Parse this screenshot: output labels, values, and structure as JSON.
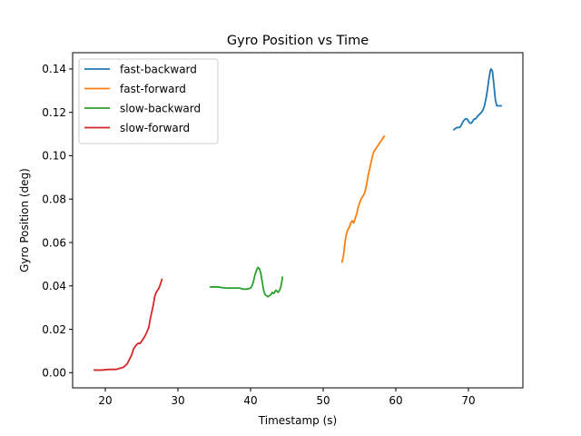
{
  "chart_data": {
    "type": "line",
    "title": "Gyro Position vs Time",
    "xlabel": "Timestamp (s)",
    "ylabel": "Gyro Position (deg)",
    "xlim": [
      15.5,
      77.5
    ],
    "ylim": [
      -0.007,
      0.1475
    ],
    "xticks": [
      20,
      30,
      40,
      50,
      60,
      70
    ],
    "yticks": [
      0.0,
      0.02,
      0.04,
      0.06,
      0.08,
      0.1,
      0.12,
      0.14
    ],
    "ytick_labels": [
      "0.00",
      "0.02",
      "0.04",
      "0.06",
      "0.08",
      "0.10",
      "0.12",
      "0.14"
    ],
    "grid": false,
    "legend_position": "top-left",
    "series": [
      {
        "name": "fast-backward",
        "color": "#1f77b4",
        "x": [
          68.0,
          68.4,
          68.8,
          69.0,
          69.3,
          69.6,
          69.8,
          70.0,
          70.2,
          70.4,
          70.6,
          70.8,
          71.0,
          71.2,
          71.5,
          71.8,
          72.0,
          72.2,
          72.4,
          72.6,
          72.8,
          73.0,
          73.1,
          73.3,
          73.5,
          73.7,
          73.9,
          74.1,
          74.3,
          74.5
        ],
        "y": [
          0.112,
          0.113,
          0.113,
          0.114,
          0.116,
          0.117,
          0.117,
          0.116,
          0.115,
          0.115,
          0.116,
          0.117,
          0.117,
          0.118,
          0.119,
          0.12,
          0.121,
          0.123,
          0.126,
          0.13,
          0.135,
          0.139,
          0.14,
          0.139,
          0.133,
          0.126,
          0.123,
          0.123,
          0.123,
          0.123
        ]
      },
      {
        "name": "fast-forward",
        "color": "#ff7f0e",
        "x": [
          52.6,
          52.8,
          53.0,
          53.2,
          53.4,
          53.6,
          53.8,
          54.0,
          54.2,
          54.4,
          54.6,
          54.8,
          55.0,
          55.2,
          55.4,
          55.6,
          55.8,
          56.0,
          56.2,
          56.4,
          56.6,
          56.8,
          57.0,
          57.2,
          57.4,
          57.6,
          57.8,
          58.0,
          58.2,
          58.4
        ],
        "y": [
          0.051,
          0.054,
          0.06,
          0.064,
          0.066,
          0.067,
          0.069,
          0.07,
          0.069,
          0.071,
          0.073,
          0.076,
          0.078,
          0.08,
          0.081,
          0.082,
          0.084,
          0.087,
          0.091,
          0.094,
          0.097,
          0.1,
          0.102,
          0.103,
          0.104,
          0.105,
          0.106,
          0.107,
          0.108,
          0.109
        ]
      },
      {
        "name": "slow-backward",
        "color": "#2ca02c",
        "x": [
          34.5,
          35.5,
          36.5,
          37.5,
          38.5,
          39.0,
          39.5,
          40.0,
          40.2,
          40.4,
          40.6,
          40.8,
          41.0,
          41.2,
          41.4,
          41.6,
          41.8,
          42.0,
          42.2,
          42.4,
          42.6,
          42.8,
          43.0,
          43.2,
          43.5,
          43.8,
          44.0,
          44.2,
          44.4
        ],
        "y": [
          0.0395,
          0.0395,
          0.039,
          0.039,
          0.039,
          0.0385,
          0.0385,
          0.039,
          0.04,
          0.042,
          0.045,
          0.047,
          0.0485,
          0.048,
          0.046,
          0.042,
          0.038,
          0.036,
          0.0355,
          0.035,
          0.0355,
          0.036,
          0.037,
          0.0365,
          0.038,
          0.037,
          0.038,
          0.04,
          0.044
        ]
      },
      {
        "name": "slow-forward",
        "color": "#d62728",
        "x": [
          18.5,
          19.5,
          20.5,
          21.5,
          22.0,
          22.5,
          23.0,
          23.3,
          23.6,
          23.9,
          24.2,
          24.5,
          24.8,
          25.1,
          25.4,
          25.7,
          26.0,
          26.2,
          26.4,
          26.6,
          26.8,
          27.0,
          27.2,
          27.4,
          27.6,
          27.8
        ],
        "y": [
          0.0012,
          0.0012,
          0.0015,
          0.0015,
          0.002,
          0.0025,
          0.004,
          0.006,
          0.008,
          0.011,
          0.0125,
          0.0135,
          0.0135,
          0.015,
          0.0165,
          0.0185,
          0.021,
          0.025,
          0.028,
          0.031,
          0.035,
          0.037,
          0.038,
          0.039,
          0.041,
          0.043
        ]
      }
    ]
  }
}
